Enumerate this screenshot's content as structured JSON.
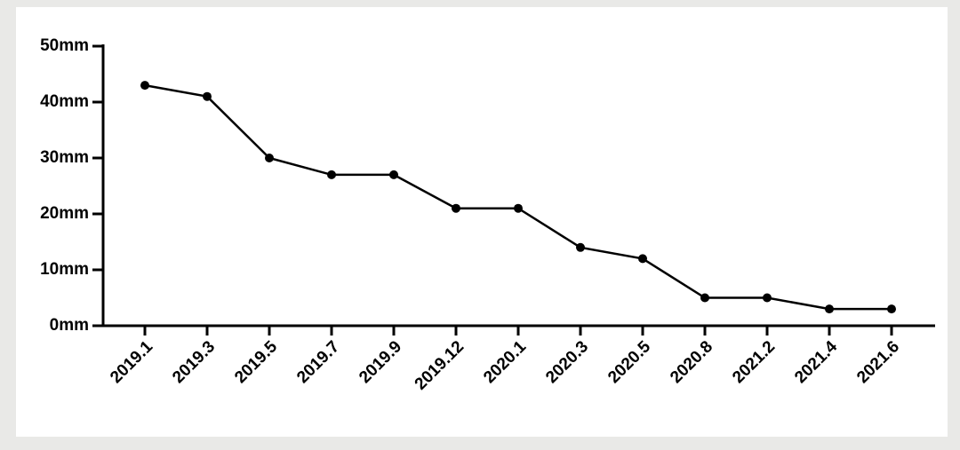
{
  "chart_data": {
    "type": "line",
    "categories": [
      "2019.1",
      "2019.3",
      "2019.5",
      "2019.7",
      "2019.9",
      "2019.12",
      "2020.1",
      "2020.3",
      "2020.5",
      "2020.8",
      "2021.2",
      "2021.4",
      "2021.6"
    ],
    "series": [
      {
        "color": "#000000",
        "values": [
          43,
          41,
          30,
          27,
          27,
          21,
          21,
          14,
          12,
          5,
          5,
          3,
          3
        ]
      }
    ],
    "ylim": [
      0,
      50
    ],
    "yticks": [
      {
        "value": 0,
        "label": "0mm"
      },
      {
        "value": 10,
        "label": "10mm"
      },
      {
        "value": 20,
        "label": "20mm"
      },
      {
        "value": 30,
        "label": "30mm"
      },
      {
        "value": 40,
        "label": "40mm"
      },
      {
        "value": 50,
        "label": "50mm"
      }
    ]
  }
}
